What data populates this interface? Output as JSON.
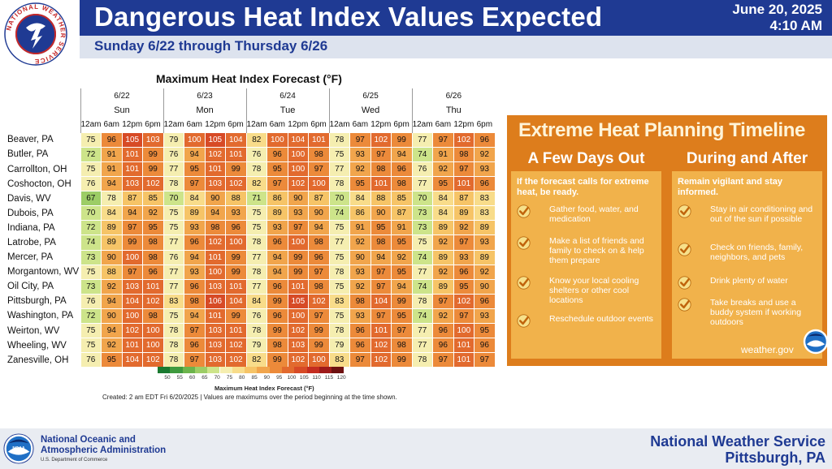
{
  "header": {
    "title": "Dangerous Heat Index Values Expected",
    "subtitle": "Sunday 6/22 through Thursday 6/26",
    "issue_date": "June 20, 2025",
    "issue_time": "4:10 AM"
  },
  "chart_data": {
    "type": "heatmap",
    "title": "Maximum Heat Index Forecast (°F)",
    "days": [
      {
        "date": "6/22",
        "name": "Sun"
      },
      {
        "date": "6/23",
        "name": "Mon"
      },
      {
        "date": "6/24",
        "name": "Tue"
      },
      {
        "date": "6/25",
        "name": "Wed"
      },
      {
        "date": "6/26",
        "name": "Thu"
      }
    ],
    "hours": [
      "12am",
      "6am",
      "12pm",
      "6pm"
    ],
    "rows": [
      {
        "location": "Beaver, PA",
        "values": [
          75,
          96,
          105,
          103,
          79,
          100,
          105,
          104,
          82,
          100,
          104,
          101,
          78,
          97,
          102,
          99,
          77,
          97,
          102,
          96
        ]
      },
      {
        "location": "Butler, PA",
        "values": [
          72,
          91,
          101,
          99,
          76,
          94,
          102,
          101,
          76,
          96,
          100,
          98,
          75,
          93,
          97,
          94,
          74,
          91,
          98,
          92
        ]
      },
      {
        "location": "Carrollton, OH",
        "values": [
          75,
          91,
          101,
          99,
          77,
          95,
          101,
          99,
          78,
          95,
          100,
          97,
          77,
          92,
          98,
          96,
          76,
          92,
          97,
          93
        ]
      },
      {
        "location": "Coshocton, OH",
        "values": [
          76,
          94,
          103,
          102,
          78,
          97,
          103,
          102,
          82,
          97,
          102,
          100,
          78,
          95,
          101,
          98,
          77,
          95,
          101,
          96
        ]
      },
      {
        "location": "Davis, WV",
        "values": [
          67,
          78,
          87,
          85,
          70,
          84,
          90,
          88,
          71,
          86,
          90,
          87,
          70,
          84,
          88,
          85,
          70,
          84,
          87,
          83
        ]
      },
      {
        "location": "Dubois, PA",
        "values": [
          70,
          84,
          94,
          92,
          75,
          89,
          94,
          93,
          75,
          89,
          93,
          90,
          74,
          86,
          90,
          87,
          73,
          84,
          89,
          83
        ]
      },
      {
        "location": "Indiana, PA",
        "values": [
          72,
          89,
          97,
          95,
          75,
          93,
          98,
          96,
          75,
          93,
          97,
          94,
          75,
          91,
          95,
          91,
          73,
          89,
          92,
          89
        ]
      },
      {
        "location": "Latrobe, PA",
        "values": [
          74,
          89,
          99,
          98,
          77,
          96,
          102,
          100,
          78,
          96,
          100,
          98,
          77,
          92,
          98,
          95,
          75,
          92,
          97,
          93
        ]
      },
      {
        "location": "Mercer, PA",
        "values": [
          73,
          90,
          100,
          98,
          76,
          94,
          101,
          99,
          77,
          94,
          99,
          96,
          75,
          90,
          94,
          92,
          74,
          89,
          93,
          89
        ]
      },
      {
        "location": "Morgantown, WV",
        "values": [
          75,
          88,
          97,
          96,
          77,
          93,
          100,
          99,
          78,
          94,
          99,
          97,
          78,
          93,
          97,
          95,
          77,
          92,
          96,
          92
        ]
      },
      {
        "location": "Oil City, PA",
        "values": [
          73,
          92,
          103,
          101,
          77,
          96,
          103,
          101,
          77,
          96,
          101,
          98,
          75,
          92,
          97,
          94,
          74,
          89,
          95,
          90
        ]
      },
      {
        "location": "Pittsburgh, PA",
        "values": [
          76,
          94,
          104,
          102,
          83,
          98,
          106,
          104,
          84,
          99,
          105,
          102,
          83,
          98,
          104,
          99,
          78,
          97,
          102,
          96
        ]
      },
      {
        "location": "Washington, PA",
        "values": [
          72,
          90,
          100,
          98,
          75,
          94,
          101,
          99,
          76,
          96,
          100,
          97,
          75,
          93,
          97,
          95,
          74,
          92,
          97,
          93
        ]
      },
      {
        "location": "Weirton, WV",
        "values": [
          75,
          94,
          102,
          100,
          78,
          97,
          103,
          101,
          78,
          99,
          102,
          99,
          78,
          96,
          101,
          97,
          77,
          96,
          100,
          95
        ]
      },
      {
        "location": "Wheeling, WV",
        "values": [
          75,
          92,
          101,
          100,
          78,
          96,
          103,
          102,
          79,
          98,
          103,
          99,
          79,
          96,
          102,
          98,
          77,
          96,
          101,
          96
        ]
      },
      {
        "location": "Zanesville, OH",
        "values": [
          76,
          95,
          104,
          102,
          78,
          97,
          103,
          102,
          82,
          99,
          102,
          100,
          83,
          97,
          102,
          99,
          78,
          97,
          101,
          97
        ]
      }
    ],
    "legend": {
      "title": "Maximum Heat Index Forecast (°F)",
      "ticks": [
        50,
        55,
        60,
        65,
        70,
        75,
        80,
        85,
        90,
        95,
        100,
        105,
        110,
        115,
        120
      ],
      "colors": [
        "#1a7a30",
        "#3f9a3e",
        "#6cb44c",
        "#9ccd66",
        "#cde48a",
        "#f5eeb0",
        "#f8dc8a",
        "#f6c467",
        "#f1a54c",
        "#ec8a3a",
        "#e26a2e",
        "#d74a26",
        "#c42d20",
        "#9e1a1a",
        "#6e1010"
      ]
    },
    "note": "Created: 2 am EDT Fri 6/20/2025  |  Values are maximums over the period beginning at the time shown."
  },
  "panel": {
    "title": "Extreme Heat Planning Timeline",
    "left": {
      "heading": "A Few Days Out",
      "intro": "If the forecast calls for extreme heat, be ready.",
      "items": [
        "Gather food, water, and medication",
        "Make a list of friends and family to check on & help them prepare",
        "Know your local cooling shelters or other cool locations",
        "Reschedule outdoor events"
      ]
    },
    "right": {
      "heading": "During and After",
      "intro": "Remain vigilant and stay informed.",
      "items": [
        "Stay in air conditioning and out of the sun if possible",
        "Check on friends, family, neighbors, and pets",
        "Drink plenty of water",
        "Take breaks and use a buddy system if working outdoors"
      ]
    },
    "website": "weather.gov",
    "accent_color": "#dd7d1c",
    "column_color": "#f1b24b"
  },
  "footer": {
    "agency_line1": "National Oceanic and",
    "agency_line2": "Atmospheric Administration",
    "department": "U.S. Department of Commerce",
    "office_line1": "National Weather Service",
    "office_line2": "Pittsburgh, PA",
    "logo_text": "NOAA"
  },
  "logo": {
    "ring_text": "NATIONAL WEATHER SERVICE"
  },
  "colors": {
    "brand_blue": "#1f3a93",
    "subtitle_bg": "#dde3ee"
  }
}
